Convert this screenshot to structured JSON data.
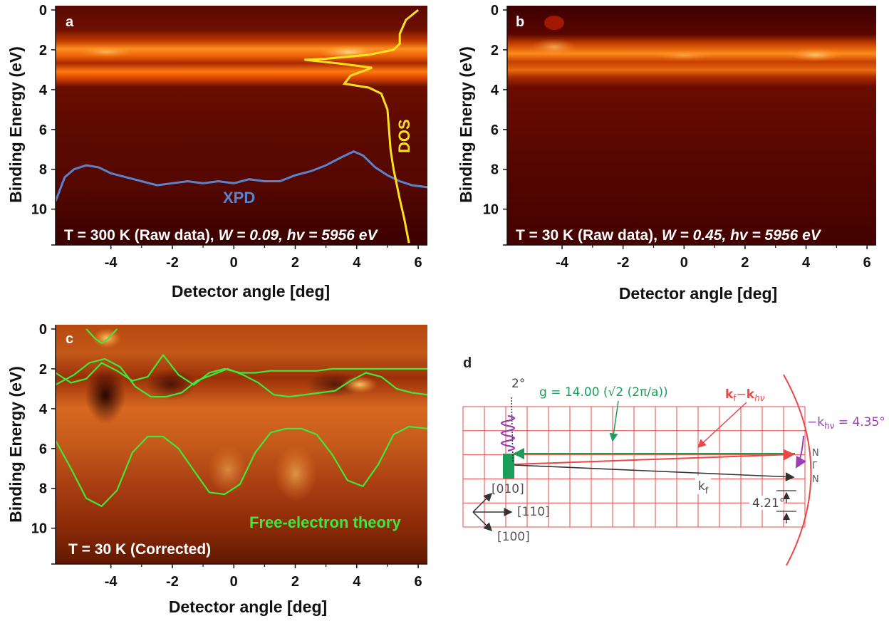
{
  "figure": {
    "panels": {
      "a": {
        "letter": "a",
        "caption_prefix": "T = 300 K (Raw data), ",
        "caption_w": "W = 0.09, hv = 5956 eV",
        "xpd_label": "XPD",
        "dos_label": "DOS",
        "ylabel": "Binding Energy (eV)",
        "xlabel": "Detector angle [deg]"
      },
      "b": {
        "letter": "b",
        "caption_prefix": "T = 30 K (Raw data), ",
        "caption_w": "W = 0.45, hv = 5956 eV",
        "ylabel": "Binding Energy (eV)",
        "xlabel": "Detector angle [deg]"
      },
      "c": {
        "letter": "c",
        "caption": "T = 30 K (Corrected)",
        "theory_label": "Free-electron theory",
        "ylabel": "Binding Energy (eV)",
        "xlabel": "Detector angle [deg]"
      },
      "d": {
        "letter": "d",
        "angle_top": "2°",
        "g_text": "g = 14.00 (√2 (2π/a))",
        "kf_khv_label": "k",
        "kf_sub": "f",
        "minus": "−",
        "khv_sub": "hν",
        "khv_label": "−k",
        "khv_value": " = 4.35°",
        "n_top": "N",
        "gamma": "Γ",
        "n_bottom": "N",
        "kf": "k",
        "kf_sub2": "f",
        "angle_421": "4.21°",
        "dir_010": "[010]",
        "dir_110": "[110]",
        "dir_100": "[100]"
      }
    },
    "colors": {
      "hot_dark": "#3a0000",
      "hot_mid": "#8b1a00",
      "hot_bright": "#ff8a20",
      "dos": "#ffe21a",
      "xpd": "#5b82cc",
      "theory": "#3ee83e",
      "grid": "#e84848",
      "green_arrow": "#1a9e5a",
      "purple": "#9a3fb0"
    }
  },
  "chart_data": [
    {
      "panel": "a",
      "type": "heatmap",
      "xlabel": "Detector angle [deg]",
      "ylabel": "Binding Energy (eV)",
      "xlim": [
        -5.8,
        6.3
      ],
      "ylim": [
        0,
        11.8
      ],
      "x_ticks": [
        -4,
        -2,
        0,
        2,
        4,
        6
      ],
      "y_ticks": [
        0,
        2,
        4,
        6,
        8,
        10
      ],
      "bright_bands_eV": [
        2.4,
        3.4
      ],
      "series": [
        {
          "name": "XPD",
          "x": [
            -5.8,
            -5.5,
            -5.2,
            -4.8,
            -4.4,
            -4.0,
            -3.5,
            -3.0,
            -2.5,
            -2.0,
            -1.5,
            -1.0,
            -0.5,
            0.0,
            0.5,
            1.0,
            1.5,
            2.0,
            2.5,
            3.0,
            3.5,
            3.9,
            4.2,
            4.6,
            5.0,
            5.4,
            5.8,
            6.3
          ],
          "y": [
            9.6,
            8.4,
            8.0,
            7.8,
            7.9,
            8.2,
            8.4,
            8.6,
            8.8,
            8.7,
            8.6,
            8.7,
            8.6,
            8.7,
            8.5,
            8.6,
            8.6,
            8.3,
            8.1,
            7.8,
            7.4,
            7.1,
            7.3,
            7.9,
            8.3,
            8.6,
            8.8,
            8.9
          ]
        },
        {
          "name": "DOS",
          "x": [
            6.0,
            5.6,
            5.4,
            5.4,
            5.2,
            4.4,
            3.0,
            2.3,
            3.5,
            4.5,
            3.8,
            3.6,
            4.4,
            4.8,
            5.0,
            5.05,
            5.1,
            5.2,
            5.4,
            5.55,
            5.7
          ],
          "y": [
            0.0,
            0.5,
            1.2,
            1.7,
            2.0,
            2.25,
            2.45,
            2.5,
            2.7,
            2.9,
            3.3,
            3.7,
            3.9,
            4.2,
            5.0,
            6.0,
            7.0,
            8.0,
            9.5,
            10.5,
            11.7
          ]
        }
      ]
    },
    {
      "panel": "b",
      "type": "heatmap",
      "xlabel": "Detector angle [deg]",
      "ylabel": "Binding Energy (eV)",
      "xlim": [
        -5.8,
        6.3
      ],
      "ylim": [
        0,
        11.8
      ],
      "x_ticks": [
        -4,
        -2,
        0,
        2,
        4,
        6
      ],
      "y_ticks": [
        0,
        2,
        4,
        6,
        8,
        10
      ],
      "bright_bands_eV": [
        2.3,
        3.4
      ]
    },
    {
      "panel": "c",
      "type": "heatmap",
      "xlabel": "Detector angle [deg]",
      "ylabel": "Binding Energy (eV)",
      "xlim": [
        -5.8,
        6.3
      ],
      "ylim": [
        0,
        11.8
      ],
      "x_ticks": [
        -4,
        -2,
        0,
        2,
        4,
        6
      ],
      "y_ticks": [
        0,
        2,
        4,
        6,
        8,
        10
      ],
      "series": [
        {
          "name": "Free-electron theory 1",
          "x": [
            -5.8,
            -5.3,
            -4.8,
            -4.3,
            -3.8,
            -3.3,
            -2.8,
            -2.3,
            -1.8,
            -1.3,
            -0.8,
            -0.3,
            0.2,
            0.7,
            1.2,
            1.7,
            2.2,
            2.7,
            3.2,
            3.7,
            4.2,
            4.7,
            5.2,
            5.7,
            6.3
          ],
          "y": [
            2.2,
            2.7,
            2.5,
            1.7,
            2.1,
            2.6,
            2.4,
            1.3,
            2.3,
            2.8,
            2.2,
            2.0,
            2.2,
            2.2,
            2.1,
            2.1,
            2.1,
            2.1,
            2.0,
            2.0,
            2.0,
            2.0,
            2.0,
            2.0,
            2.0
          ]
        },
        {
          "name": "Free-electron theory 2",
          "x": [
            -5.8,
            -5.2,
            -4.7,
            -4.2,
            -3.7,
            -3.2,
            -2.7,
            -2.2,
            -1.7,
            -1.2,
            -0.7,
            -0.2,
            0.3,
            0.8,
            1.3,
            1.8,
            2.3,
            2.8,
            3.3,
            3.8,
            4.3,
            4.8,
            5.3,
            5.8,
            6.3
          ],
          "y": [
            2.8,
            2.3,
            1.7,
            1.5,
            1.9,
            2.9,
            3.4,
            3.4,
            3.2,
            2.6,
            2.3,
            2.0,
            2.3,
            2.7,
            3.3,
            3.4,
            3.3,
            3.2,
            3.1,
            2.6,
            2.2,
            2.4,
            3.0,
            3.2,
            3.3
          ]
        },
        {
          "name": "Free-electron theory 3",
          "x": [
            -5.8,
            -5.3,
            -4.8,
            -4.3,
            -3.8,
            -3.3,
            -2.8,
            -2.3,
            -1.8,
            -1.3,
            -0.8,
            -0.3,
            0.2,
            0.7,
            1.2,
            1.7,
            2.2,
            2.7,
            3.2,
            3.7,
            4.2,
            4.7,
            5.2,
            5.7,
            6.3
          ],
          "y": [
            5.6,
            7.0,
            8.5,
            8.9,
            8.1,
            6.2,
            5.4,
            5.4,
            6.0,
            7.1,
            8.2,
            8.3,
            7.8,
            6.2,
            5.2,
            5.0,
            5.0,
            5.3,
            6.3,
            7.6,
            7.9,
            6.8,
            5.3,
            4.9,
            5.0
          ]
        },
        {
          "name": "Free-electron theory 4",
          "x": [
            -4.8,
            -4.5,
            -4.3,
            -4.1,
            -3.8
          ],
          "y": [
            0.0,
            0.5,
            0.7,
            0.5,
            0.0
          ]
        }
      ]
    }
  ]
}
